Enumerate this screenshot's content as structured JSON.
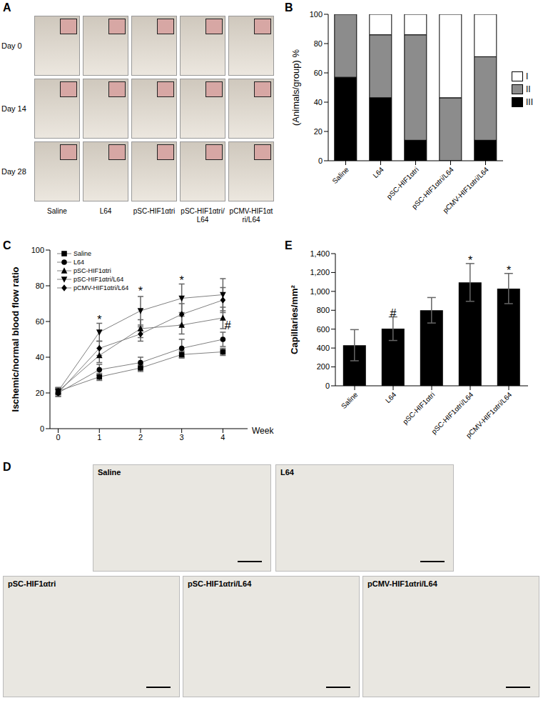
{
  "chart_data": [
    {
      "type": "bar",
      "title": "B",
      "y_label": "(Animals/group) %",
      "categories": [
        "Saline",
        "L64",
        "pSC-HIF1αtri",
        "pSC-HIF1αtri/L64",
        "pCMV-HIF1αtri/L64"
      ],
      "stacked": true,
      "legend": "right",
      "ylim": [
        0,
        100
      ],
      "yticks": [
        0,
        20,
        40,
        60,
        80,
        100
      ],
      "series": [
        {
          "name": "III",
          "color": "#000000",
          "values": [
            57,
            43,
            14,
            0,
            14
          ]
        },
        {
          "name": "II",
          "color": "#8c8c8c",
          "values": [
            43,
            43,
            72,
            43,
            57
          ]
        },
        {
          "name": "I",
          "color": "#ffffff",
          "values": [
            0,
            14,
            14,
            57,
            29
          ]
        }
      ]
    },
    {
      "type": "line",
      "title": "C",
      "x_label": "Week",
      "y_label": "Ischemic/normal blood flow ratio",
      "x": [
        0,
        1,
        2,
        3,
        4
      ],
      "xlim": [
        -0.2,
        4.6
      ],
      "xticks": [
        0,
        1,
        2,
        3,
        4
      ],
      "ylim": [
        0,
        100
      ],
      "yticks": [
        0,
        20,
        40,
        60,
        80,
        100
      ],
      "legend": "upper left",
      "series": [
        {
          "name": "Saline",
          "color": "#808080",
          "marker": "square",
          "values": [
            21,
            29,
            34,
            41.5,
            43
          ],
          "errors": [
            2,
            2,
            2,
            2,
            2
          ]
        },
        {
          "name": "L64",
          "color": "#808080",
          "marker": "circle",
          "values": [
            20,
            33,
            37,
            45,
            50
          ],
          "errors": [
            2,
            3,
            3,
            5,
            4
          ]
        },
        {
          "name": "pSC-HIF1αtri",
          "color": "#808080",
          "marker": "triangle-up",
          "values": [
            21,
            41,
            56,
            58,
            62
          ],
          "errors": [
            2,
            4,
            5,
            5,
            6
          ]
        },
        {
          "name": "pSC-HIF1αtri/L64",
          "color": "#808080",
          "marker": "triangle-down",
          "values": [
            21,
            54,
            66,
            73,
            75
          ],
          "errors": [
            2,
            5,
            8,
            8,
            9
          ]
        },
        {
          "name": "pCMV-HIF1αtri/L64",
          "color": "#808080",
          "marker": "diamond",
          "values": [
            20,
            45,
            53,
            64,
            72
          ],
          "errors": [
            2,
            4,
            4,
            6,
            7
          ]
        }
      ],
      "annotations": [
        {
          "x": 1,
          "y": 61,
          "text": "*"
        },
        {
          "x": 2,
          "y": 77,
          "text": "*"
        },
        {
          "x": 3,
          "y": 83,
          "text": "*"
        },
        {
          "x": 4.12,
          "y": 58,
          "text": "#"
        }
      ]
    },
    {
      "type": "bar",
      "title": "E",
      "y_label": "Capillaries/mm²",
      "categories": [
        "Saline",
        "L64",
        "pSC-HIF1αtri",
        "pSC-HIF1αtri/L64",
        "pCMV-HIF1αtri/L64"
      ],
      "values": [
        430,
        605,
        800,
        1095,
        1030
      ],
      "errors": [
        165,
        125,
        135,
        200,
        160
      ],
      "color": "#000000",
      "ylim": [
        0,
        1400
      ],
      "yticks": [
        0,
        200,
        400,
        600,
        800,
        {
          "value": 1000,
          "label": "1,000"
        },
        {
          "value": 1200,
          "label": "1,200"
        },
        {
          "value": 1400,
          "label": "1,400"
        }
      ],
      "annotations": [
        {
          "category": "L64",
          "y": 770,
          "text": "#"
        },
        {
          "category": "pSC-HIF1αtri/L64",
          "y": 1330,
          "text": "*"
        },
        {
          "category": "pCMV-HIF1αtri/L64",
          "y": 1225,
          "text": "*"
        }
      ]
    }
  ],
  "photo_panel_A": {
    "title": "A",
    "rows": [
      "Day 0",
      "Day 14",
      "Day 28"
    ],
    "columns": [
      "Saline",
      "L64",
      "pSC-HIF1αtri",
      "pSC-HIF1αtri/L64",
      "pCMV-HIF1αtri/L64"
    ]
  },
  "photo_panel_D": {
    "title": "D",
    "panels": [
      "Saline",
      "L64",
      "pSC-HIF1αtri",
      "pSC-HIF1αtri/L64",
      "pCMV-HIF1αtri/L64"
    ]
  }
}
